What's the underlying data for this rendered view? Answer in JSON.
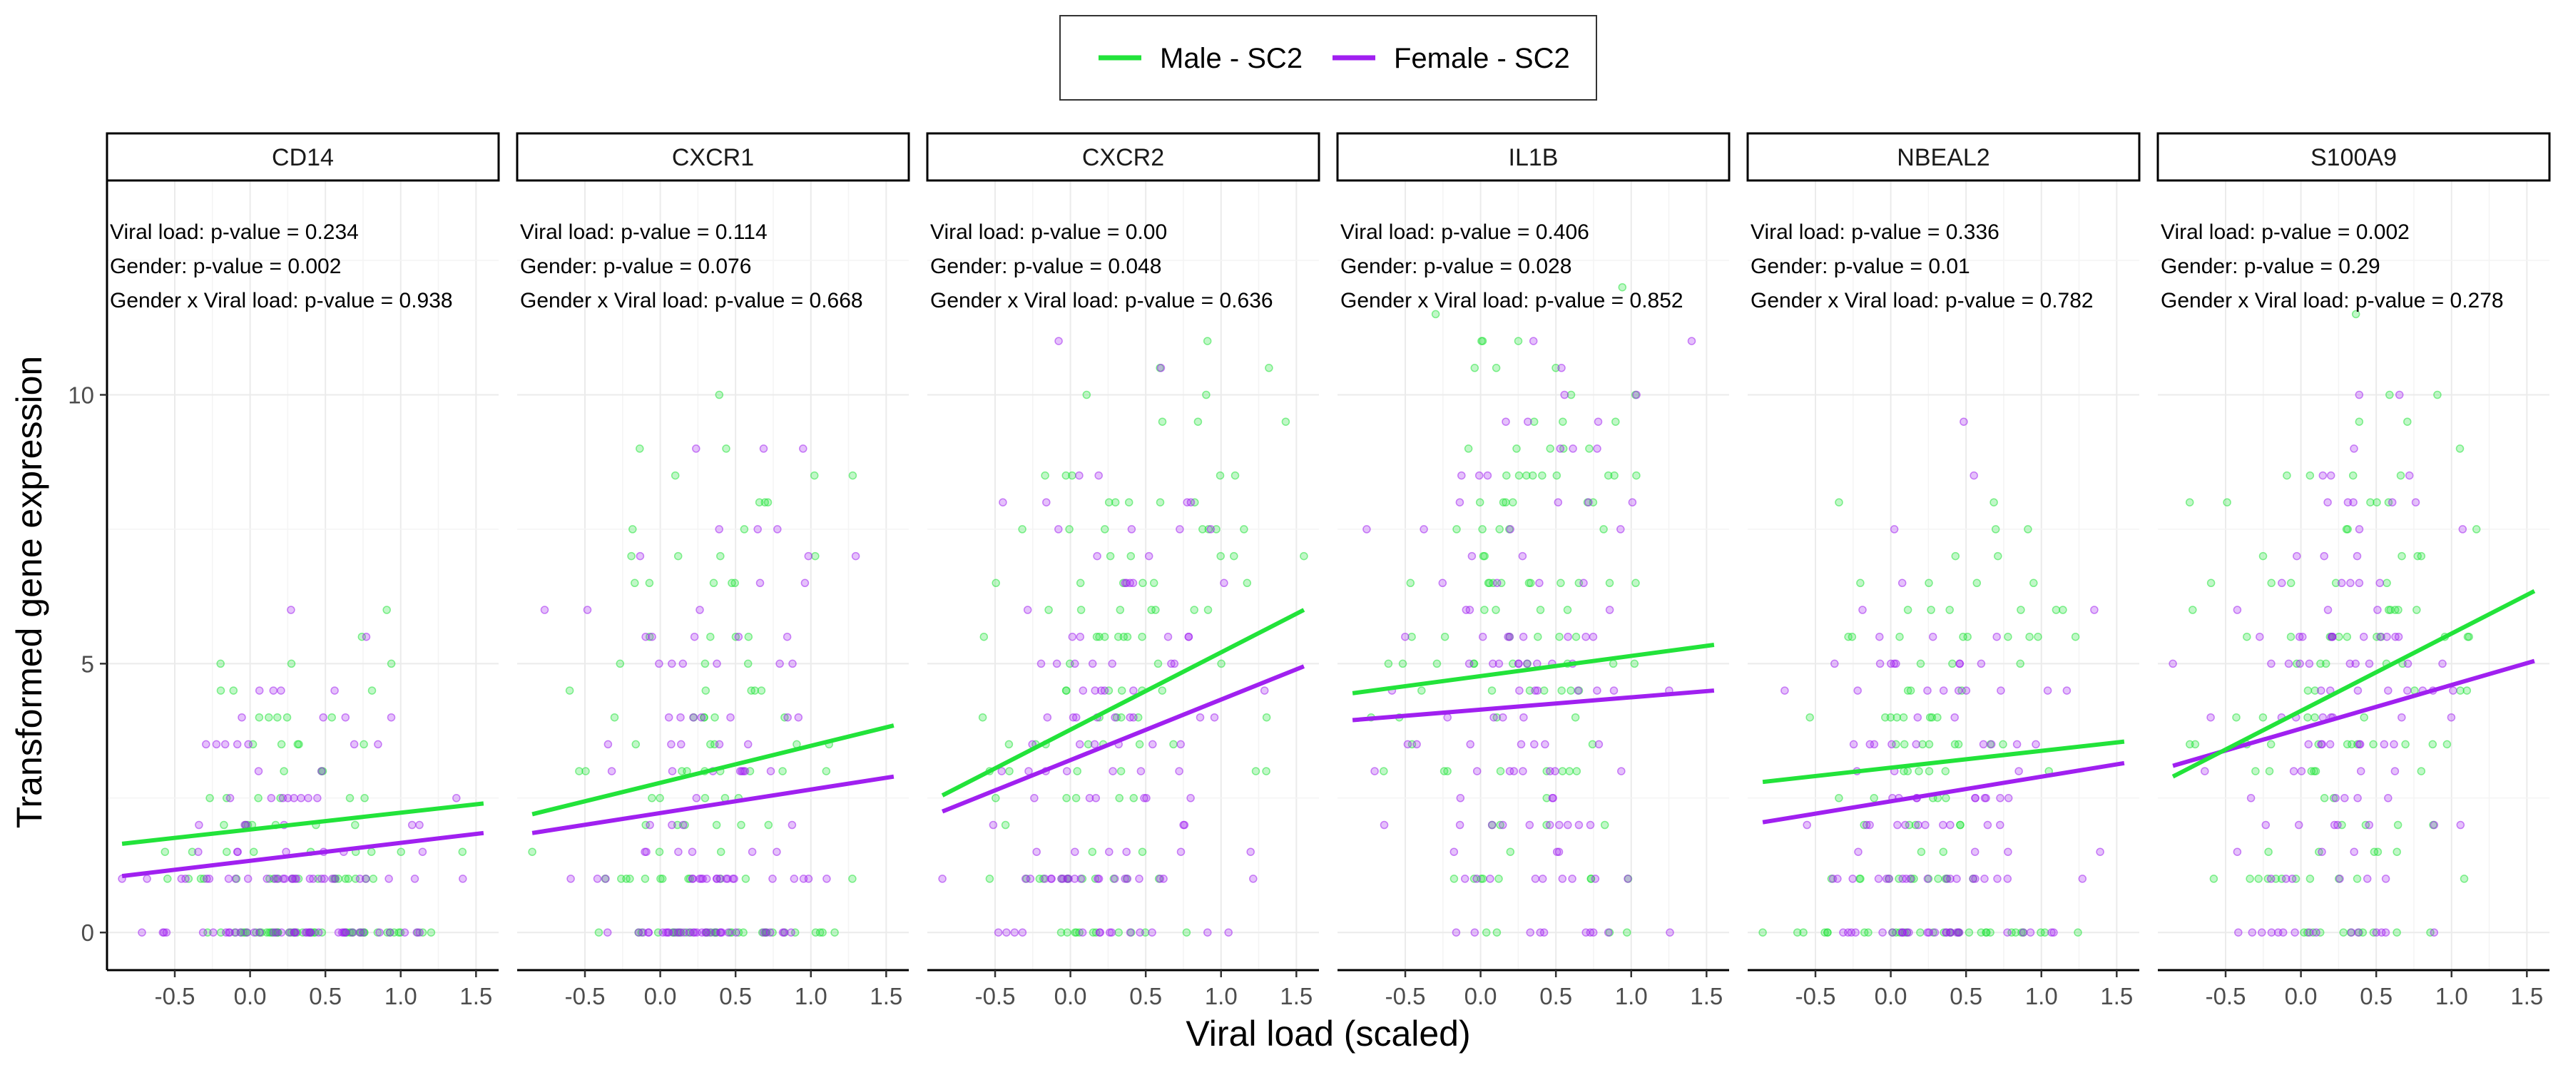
{
  "chart_data": {
    "type": "scatter",
    "xlabel": "Viral load (scaled)",
    "ylabel": "Transformed gene expression",
    "xlim": [
      -0.95,
      1.65
    ],
    "ylim": [
      -0.7,
      14.0
    ],
    "xticks": [
      -0.5,
      0.0,
      0.5,
      1.0,
      1.5
    ],
    "xtick_labels": [
      "-0.5",
      "0.0",
      "0.5",
      "1.0",
      "1.5"
    ],
    "yticks": [
      0,
      5,
      10
    ],
    "ytick_labels": [
      "0",
      "5",
      "10"
    ],
    "grid": true,
    "legend_position": "top",
    "series": [
      {
        "name": "Male - SC2",
        "color": "#22e33a"
      },
      {
        "name": "Female - SC2",
        "color": "#a020f0"
      }
    ],
    "panels": [
      {
        "title": "CD14",
        "stats": [
          "Viral load: p-value = 0.234",
          "Gender: p-value = 0.002",
          "Gender x Viral load: p-value = 0.938"
        ],
        "fit_lines": {
          "male": [
            [
              -0.85,
              1.65
            ],
            [
              1.55,
              2.4
            ]
          ],
          "female": [
            [
              -0.85,
              1.05
            ],
            [
              1.55,
              1.85
            ]
          ]
        },
        "points": {
          "mean": 1.9,
          "sd": 1.9,
          "zero_fraction": 0.45,
          "slope": 0.35
        }
      },
      {
        "title": "CXCR1",
        "stats": [
          "Viral load: p-value = 0.114",
          "Gender: p-value = 0.076",
          "Gender x Viral load: p-value = 0.668"
        ],
        "fit_lines": {
          "male": [
            [
              -0.85,
              2.2
            ],
            [
              1.55,
              3.85
            ]
          ],
          "female": [
            [
              -0.85,
              1.85
            ],
            [
              1.55,
              2.9
            ]
          ]
        },
        "points": {
          "mean": 3.6,
          "sd": 2.7,
          "zero_fraction": 0.3,
          "slope": 0.6
        }
      },
      {
        "title": "CXCR2",
        "stats": [
          "Viral load: p-value = 0.00",
          "Gender: p-value = 0.048",
          "Gender x Viral load: p-value = 0.636"
        ],
        "fit_lines": {
          "male": [
            [
              -0.85,
              2.55
            ],
            [
              1.55,
              6.0
            ]
          ],
          "female": [
            [
              -0.85,
              2.25
            ],
            [
              1.55,
              4.95
            ]
          ]
        },
        "points": {
          "mean": 4.3,
          "sd": 2.8,
          "zero_fraction": 0.12,
          "slope": 1.3
        }
      },
      {
        "title": "IL1B",
        "stats": [
          "Viral load: p-value = 0.406",
          "Gender: p-value = 0.028",
          "Gender x Viral load: p-value = 0.852"
        ],
        "fit_lines": {
          "male": [
            [
              -0.85,
              4.45
            ],
            [
              1.55,
              5.35
            ]
          ],
          "female": [
            [
              -0.85,
              3.95
            ],
            [
              1.55,
              4.5
            ]
          ]
        },
        "points": {
          "mean": 5.0,
          "sd": 2.7,
          "zero_fraction": 0.07,
          "slope": 0.4
        }
      },
      {
        "title": "NBEAL2",
        "stats": [
          "Viral load: p-value = 0.336",
          "Gender: p-value = 0.01",
          "Gender x Viral load: p-value = 0.782"
        ],
        "fit_lines": {
          "male": [
            [
              -0.85,
              2.8
            ],
            [
              1.55,
              3.55
            ]
          ],
          "female": [
            [
              -0.85,
              2.05
            ],
            [
              1.55,
              3.15
            ]
          ]
        },
        "points": {
          "mean": 3.3,
          "sd": 2.3,
          "zero_fraction": 0.25,
          "slope": 0.4
        }
      },
      {
        "title": "S100A9",
        "stats": [
          "Viral load: p-value = 0.002",
          "Gender: p-value = 0.29",
          "Gender x Viral load: p-value = 0.278"
        ],
        "fit_lines": {
          "male": [
            [
              -0.85,
              2.9
            ],
            [
              1.55,
              6.35
            ]
          ],
          "female": [
            [
              -0.85,
              3.1
            ],
            [
              1.55,
              5.05
            ]
          ]
        },
        "points": {
          "mean": 4.6,
          "sd": 2.6,
          "zero_fraction": 0.08,
          "slope": 1.2
        }
      }
    ]
  }
}
